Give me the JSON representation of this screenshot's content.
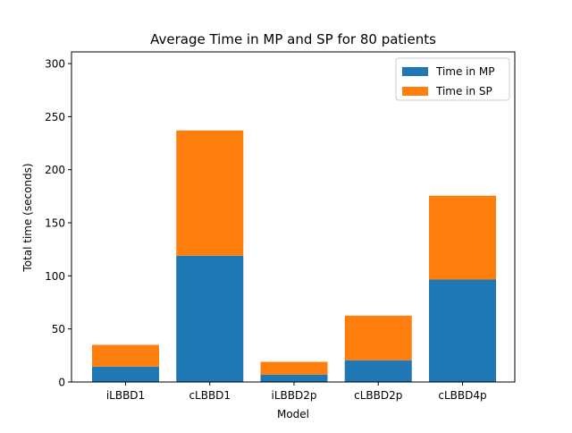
{
  "chart_data": {
    "type": "bar",
    "stacked": true,
    "title": "Average Time in MP and SP for 80 patients",
    "xlabel": "Model",
    "ylabel": "Total time (seconds)",
    "categories": [
      "iLBBD1",
      "cLBBD1",
      "iLBBD2p",
      "cLBBD2p",
      "cLBBD4p"
    ],
    "series": [
      {
        "name": "Time in MP",
        "color": "#1f77b4",
        "values": [
          14.5,
          119,
          7,
          20.5,
          96.5
        ]
      },
      {
        "name": "Time in SP",
        "color": "#ff7f0e",
        "values": [
          20.5,
          118,
          12,
          42,
          79
        ]
      }
    ],
    "ylim": [
      0,
      311
    ],
    "yticks": [
      0,
      50,
      100,
      150,
      200,
      250,
      300
    ],
    "grid": false,
    "legend_position": "top-right"
  }
}
